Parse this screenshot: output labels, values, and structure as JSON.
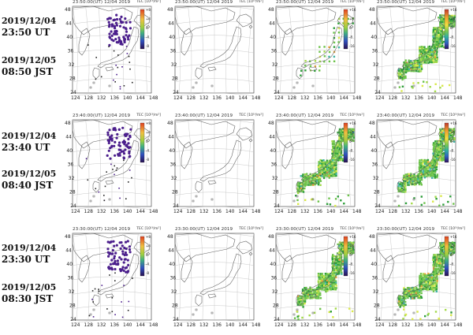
{
  "rows": [
    {
      "utc_date": "2019/12/04",
      "utc_time": "23:50 UT",
      "jst_date": "2019/12/05",
      "jst_time": "08:50 JST"
    },
    {
      "utc_date": "2019/12/04",
      "utc_time": "23:40 UT",
      "jst_date": "2019/12/05",
      "jst_time": "08:40 JST"
    },
    {
      "utc_date": "2019/12/04",
      "utc_time": "23:30 UT",
      "jst_date": "2019/12/05",
      "jst_time": "08:30 JST"
    }
  ],
  "panel_titles": [
    [
      "23:50:00(UT)   12/04 2019",
      "23:50:00(UT)   12/04 2019",
      "23:50:00(UT)   12/04 2019",
      "23:50:00(UT)   12/04 2019"
    ],
    [
      "23:40:00(UT)   12/04 2019",
      "23:40:00(UT)   12/04 2019",
      "23:40:00(UT)   12/04 2019",
      "23:40:00(UT)   12/04 2019"
    ],
    [
      "23:30:00(UT)   12/04 2019",
      "23:30:00(UT)   12/04 2019",
      "23:30:00(UT)   12/04 2019",
      "23:30:00(UT)   12/04 2019"
    ]
  ],
  "tec_label": "TEC [10¹⁶/m²]",
  "lon_ticks": [
    "124",
    "128",
    "132",
    "136",
    "140",
    "144",
    "148"
  ],
  "lat_ticks": [
    "48",
    "44",
    "40",
    "36",
    "32",
    "28",
    "24"
  ],
  "colorbar_ticks": {
    "positive": [
      "+16",
      "+8",
      "0",
      "-8",
      "-16"
    ],
    "small": [
      "+8",
      "+4",
      "0",
      "-4",
      "-8"
    ]
  },
  "panel_types": [
    [
      "stations",
      "blank",
      "sparse",
      "full"
    ],
    [
      "stations",
      "blank",
      "full",
      "full"
    ],
    [
      "stations",
      "blank",
      "full",
      "full"
    ]
  ],
  "colors": {
    "station": "#4b1e8c",
    "coast": "#666666",
    "grid": "#bbbbbb",
    "land_fill": [
      "#2e9e3a",
      "#6cc24a",
      "#a3d94a",
      "#d9e84a",
      "#3fb3a5",
      "#e5a23a"
    ]
  }
}
